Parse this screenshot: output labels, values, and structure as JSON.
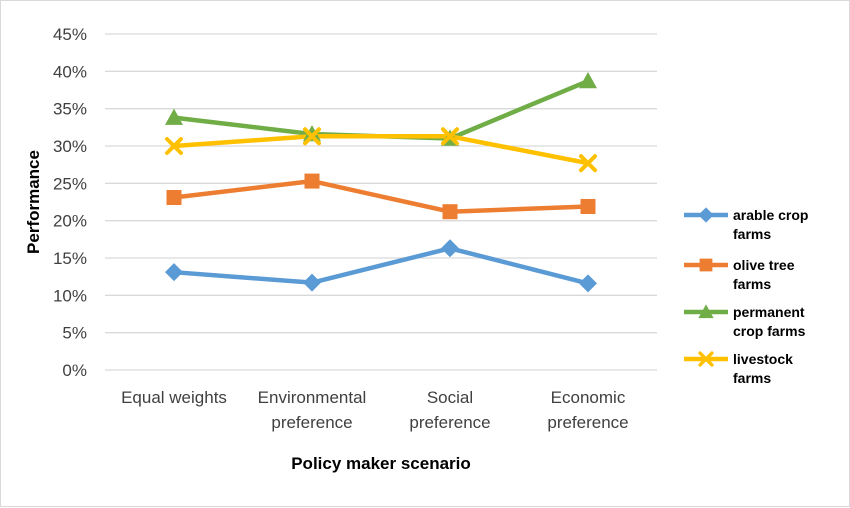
{
  "chart_data": {
    "type": "line",
    "title": "",
    "xlabel": "Policy maker scenario",
    "ylabel": "Performance",
    "categories": [
      [
        "Equal weights"
      ],
      [
        "Environmental",
        "preference"
      ],
      [
        "Social",
        "preference"
      ],
      [
        "Economic",
        "preference"
      ]
    ],
    "ylim": [
      0,
      0.45
    ],
    "ytick_step": 0.05,
    "yticks": [
      "0%",
      "5%",
      "10%",
      "15%",
      "20%",
      "25%",
      "30%",
      "35%",
      "40%",
      "45%"
    ],
    "grid": true,
    "legend_position": "right",
    "series": [
      {
        "name": [
          "arable crop",
          "farms"
        ],
        "color": "#5b9bd5",
        "marker": "diamond",
        "values": [
          0.131,
          0.117,
          0.163,
          0.116
        ]
      },
      {
        "name": [
          "olive tree",
          "farms"
        ],
        "color": "#ed7d31",
        "marker": "square",
        "values": [
          0.231,
          0.253,
          0.212,
          0.219
        ]
      },
      {
        "name": [
          "permanent",
          "crop farms"
        ],
        "color": "#70ad47",
        "marker": "triangle",
        "values": [
          0.338,
          0.316,
          0.31,
          0.387
        ]
      },
      {
        "name": [
          "livestock",
          "farms"
        ],
        "color": "#ffc000",
        "marker": "x",
        "values": [
          0.3,
          0.313,
          0.313,
          0.277
        ]
      }
    ]
  }
}
